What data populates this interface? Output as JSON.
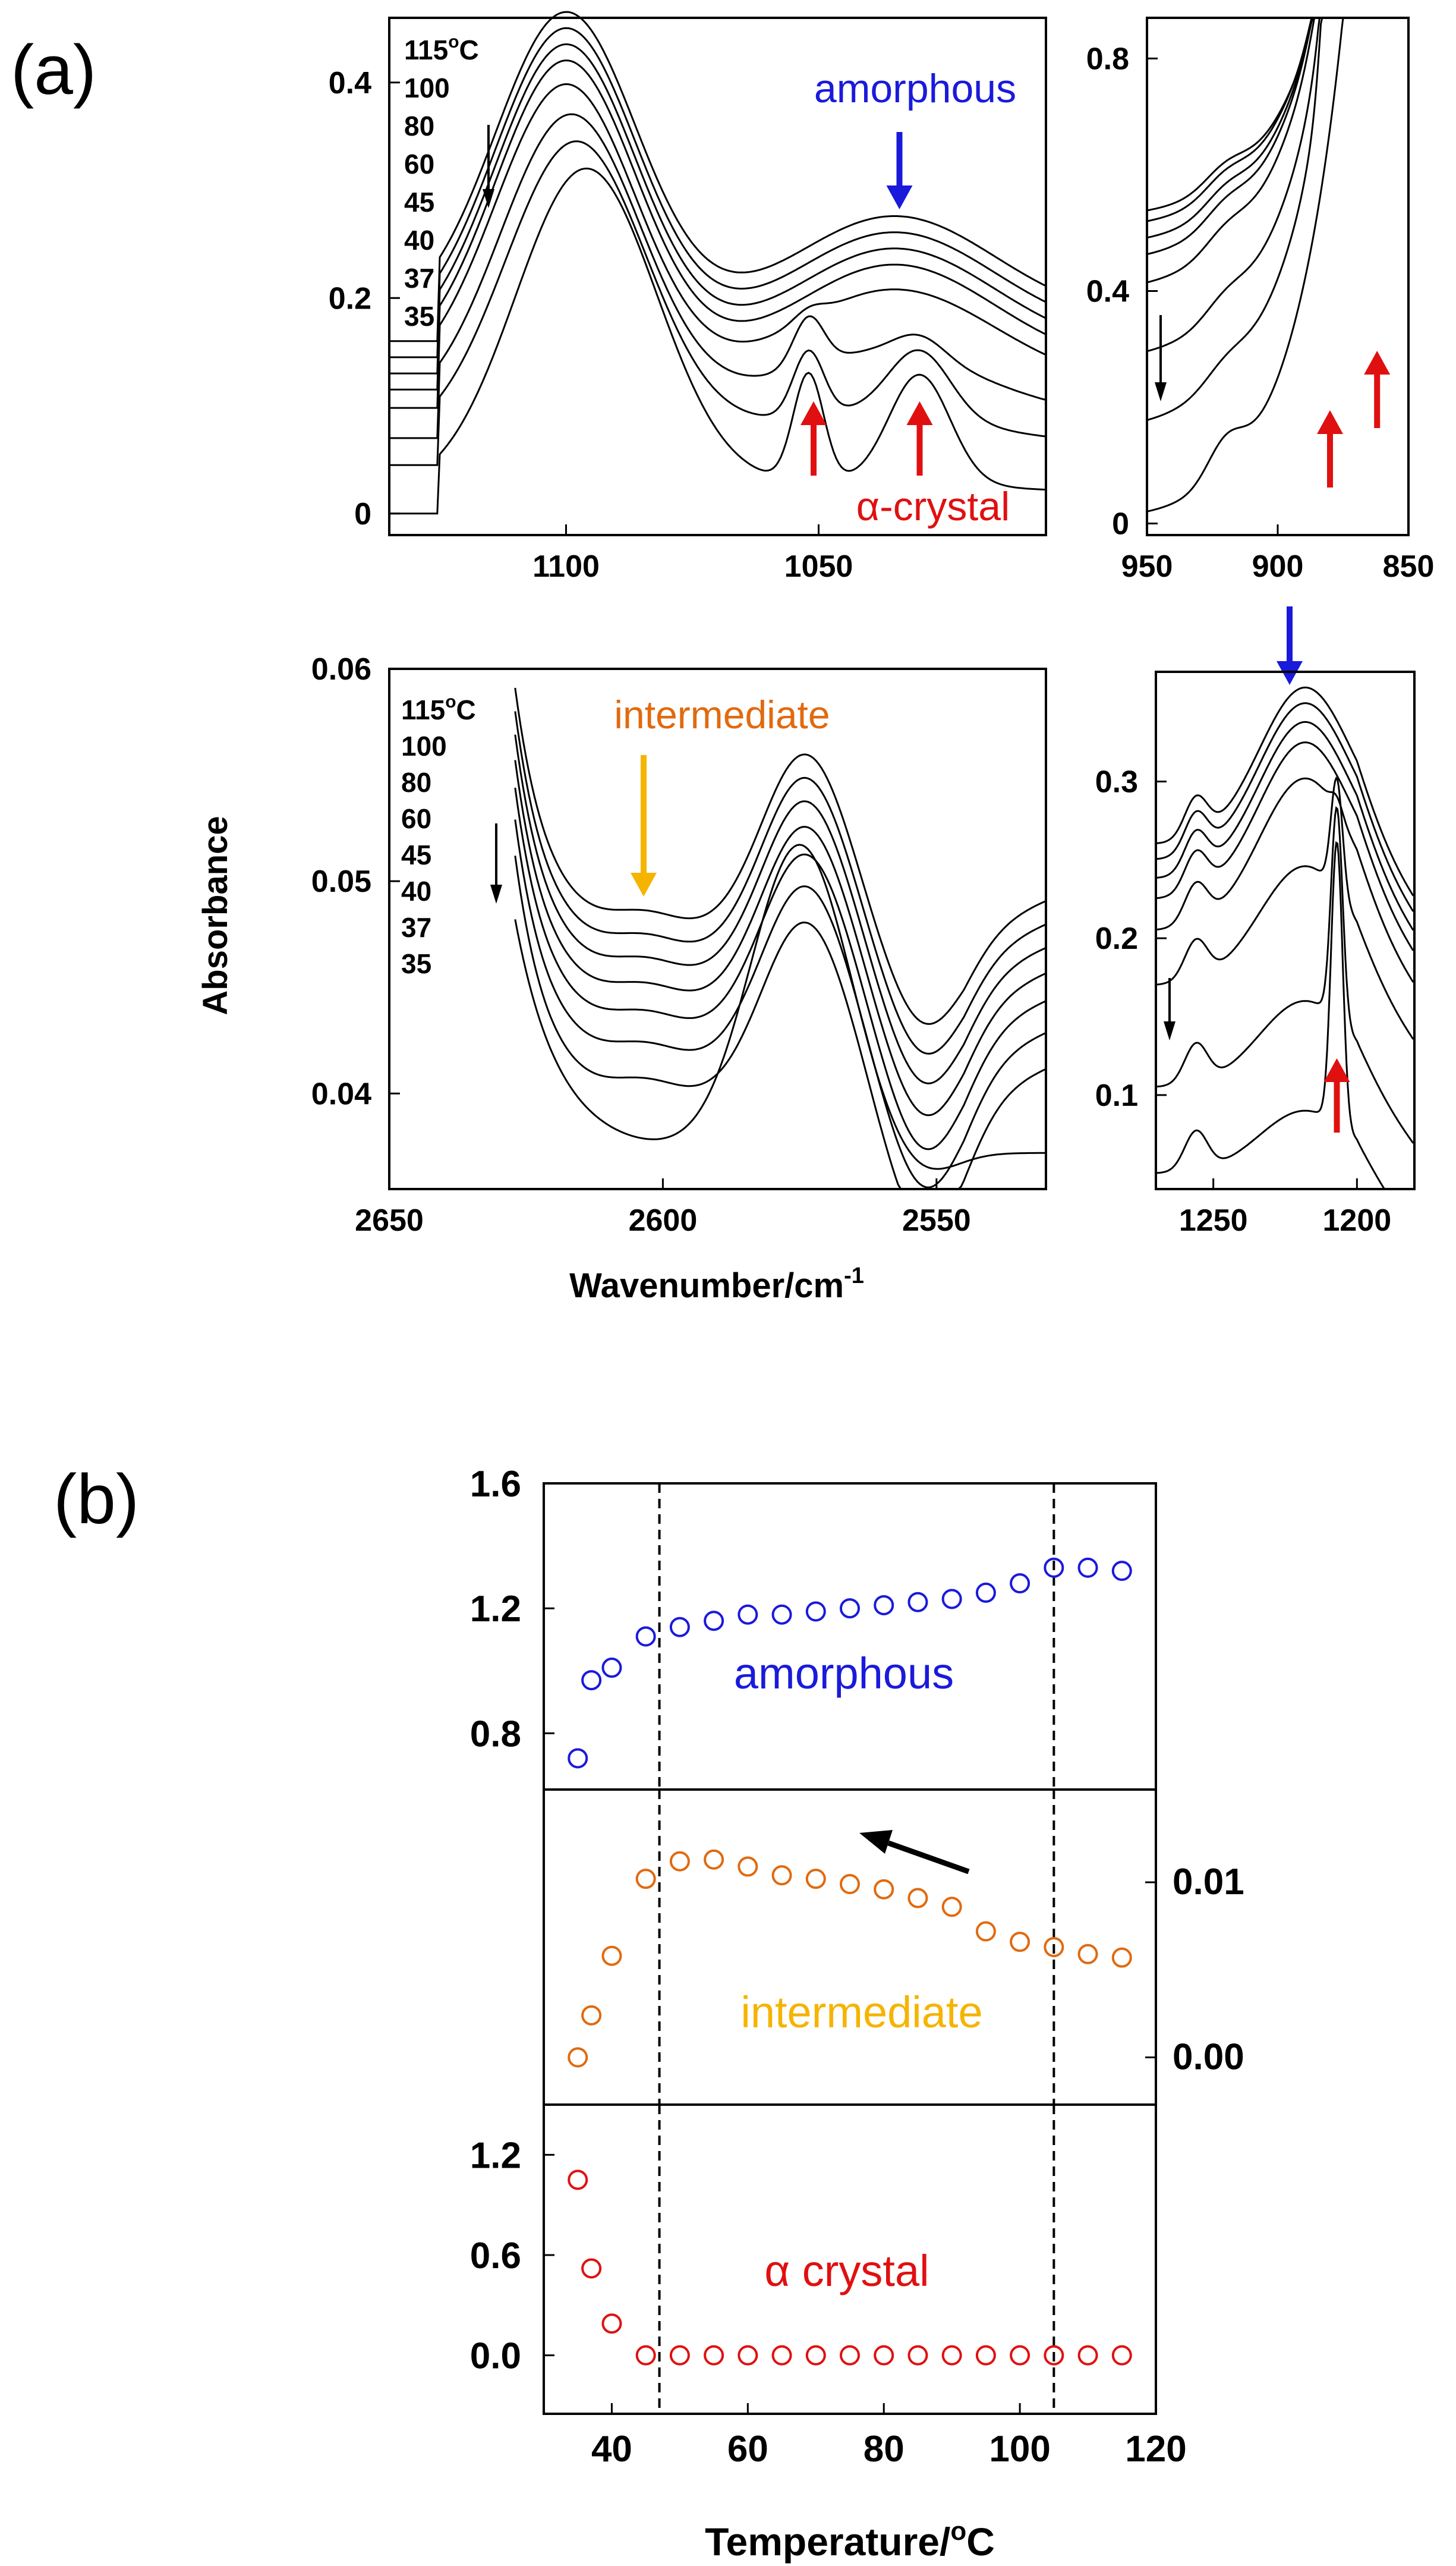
{
  "figure": {
    "panel_a_label": "(a)",
    "panel_b_label": "(b)",
    "y_axis_label": "Absorbance",
    "x_axis_label_a": "Wavenumber/cm",
    "x_axis_label_a_sup": "-1",
    "x_axis_label_b": "Temperature/",
    "x_axis_label_b_sup": "o",
    "x_axis_label_b_end": "C",
    "colors": {
      "amorphous": "#1a1adb",
      "intermediate": "#e06a10",
      "intermediate_arrow": "#f5b400",
      "intermediate_label_b": "#f5b400",
      "crystal": "#e01010",
      "line": "#000000"
    }
  },
  "chart_data": [
    {
      "id": "a1",
      "type": "line",
      "title": "",
      "xlim": [
        1135,
        1005
      ],
      "ylim": [
        -0.02,
        0.46
      ],
      "x_ticks": [
        1100,
        1050
      ],
      "x_tick_labels": [
        "1100",
        "1050"
      ],
      "y_ticks": [
        0,
        0.2,
        0.4
      ],
      "y_tick_labels": [
        "0",
        "0.2",
        "0.4"
      ],
      "legend": {
        "labels": [
          "115",
          "100",
          "80",
          "60",
          "45",
          "40",
          "37",
          "35"
        ],
        "first_suffix_sup": "o",
        "first_suffix": "C",
        "placement": "top-left"
      },
      "annotations": [
        {
          "text": "amorphous",
          "color": "amorphous",
          "arrow": "down",
          "at_x": 1034
        },
        {
          "text": "α-crystal",
          "color": "crystal",
          "arrows_up_at_x": [
            1051,
            1030
          ]
        }
      ],
      "series": [
        {
          "name": "115",
          "offset": 0.16,
          "peaks": [
            [
              1100,
              0.285,
              14
            ],
            [
              1035,
              0.096,
              20
            ]
          ],
          "sharp": []
        },
        {
          "name": "100",
          "offset": 0.145,
          "peaks": [
            [
              1100,
              0.285,
              14
            ],
            [
              1035,
              0.096,
              20
            ]
          ],
          "sharp": []
        },
        {
          "name": "80",
          "offset": 0.13,
          "peaks": [
            [
              1100,
              0.285,
              14
            ],
            [
              1035,
              0.096,
              20
            ]
          ],
          "sharp": []
        },
        {
          "name": "60",
          "offset": 0.115,
          "peaks": [
            [
              1100,
              0.285,
              14
            ],
            [
              1035,
              0.096,
              20
            ]
          ],
          "sharp": []
        },
        {
          "name": "45",
          "offset": 0.098,
          "peaks": [
            [
              1100,
              0.28,
              14
            ],
            [
              1035,
              0.09,
              20
            ]
          ],
          "sharp": [
            [
              1052,
              0.01,
              3
            ]
          ]
        },
        {
          "name": "40",
          "offset": 0.07,
          "peaks": [
            [
              1099,
              0.28,
              14
            ],
            [
              1038,
              0.06,
              20
            ]
          ],
          "sharp": [
            [
              1052,
              0.045,
              3
            ],
            [
              1030,
              0.02,
              5
            ]
          ]
        },
        {
          "name": "37",
          "offset": 0.045,
          "peaks": [
            [
              1098,
              0.28,
              14
            ],
            [
              1040,
              0.03,
              20
            ]
          ],
          "sharp": [
            [
              1052,
              0.06,
              3
            ],
            [
              1030,
              0.06,
              6
            ]
          ]
        },
        {
          "name": "35",
          "offset": 0.0,
          "peaks": [
            [
              1096,
              0.3,
              14
            ],
            [
              1040,
              0.01,
              20
            ]
          ],
          "sharp": [
            [
              1052,
              0.1,
              3
            ],
            [
              1030,
              0.1,
              6
            ]
          ]
        }
      ]
    },
    {
      "id": "a2",
      "type": "line",
      "title": "",
      "xlim": [
        950,
        850
      ],
      "ylim": [
        -0.02,
        0.87
      ],
      "x_ticks": [
        950,
        900,
        850
      ],
      "x_tick_labels": [
        "950",
        "900",
        "850"
      ],
      "y_ticks": [
        0,
        0.4,
        0.8
      ],
      "y_tick_labels": [
        "0",
        "0.4",
        "0.8"
      ],
      "annotations": [
        {
          "text": "",
          "color": "crystal",
          "arrows_up_at_x": [
            880,
            862
          ]
        }
      ],
      "series": [
        {
          "name": "115",
          "offset": 0.52
        },
        {
          "name": "100",
          "offset": 0.5
        },
        {
          "name": "80",
          "offset": 0.47
        },
        {
          "name": "60",
          "offset": 0.44
        },
        {
          "name": "45",
          "offset": 0.39
        },
        {
          "name": "40",
          "offset": 0.27
        },
        {
          "name": "37",
          "offset": 0.15
        },
        {
          "name": "35",
          "offset": 0.0
        }
      ]
    },
    {
      "id": "a3",
      "type": "line",
      "title": "",
      "xlim": [
        2650,
        2530
      ],
      "ylim": [
        0.0355,
        0.06
      ],
      "x_ticks": [
        2650,
        2600,
        2550
      ],
      "x_tick_labels": [
        "2650",
        "2600",
        "2550"
      ],
      "y_ticks": [
        0.04,
        0.05,
        0.06
      ],
      "y_tick_labels": [
        "0.04",
        "0.05",
        "0.06"
      ],
      "legend": {
        "labels": [
          "115",
          "100",
          "80",
          "60",
          "45",
          "40",
          "37",
          "35"
        ],
        "first_suffix_sup": "o",
        "first_suffix": "C",
        "placement": "top-left"
      },
      "annotations": [
        {
          "text": "intermediate",
          "color": "intermediate",
          "arrow_color": "intermediate_arrow",
          "arrow": "down",
          "at_x": 2604
        }
      ],
      "series": [
        {
          "name": "115",
          "offset": 0.0476
        },
        {
          "name": "100",
          "offset": 0.0465
        },
        {
          "name": "80",
          "offset": 0.0454
        },
        {
          "name": "60",
          "offset": 0.0442
        },
        {
          "name": "45",
          "offset": 0.0429
        },
        {
          "name": "40",
          "offset": 0.0414
        },
        {
          "name": "37",
          "offset": 0.0397
        },
        {
          "name": "35",
          "offset": 0.0372
        }
      ]
    },
    {
      "id": "a4",
      "type": "line",
      "title": "",
      "xlim": [
        1270,
        1180
      ],
      "ylim": [
        0.04,
        0.37
      ],
      "x_ticks": [
        1250,
        1200
      ],
      "x_tick_labels": [
        "1250",
        "1200"
      ],
      "y_ticks": [
        0.1,
        0.2,
        0.3
      ],
      "y_tick_labels": [
        "0.1",
        "0.2",
        "0.3"
      ],
      "annotations": [
        {
          "text": "",
          "color": "amorphous",
          "arrow": "down",
          "at_x": 1220
        },
        {
          "text": "",
          "color": "crystal",
          "arrows_up_at_x": [
            1207
          ]
        }
      ],
      "series": [
        {
          "name": "115",
          "offset": 0.26
        },
        {
          "name": "100",
          "offset": 0.25
        },
        {
          "name": "80",
          "offset": 0.238
        },
        {
          "name": "60",
          "offset": 0.225
        },
        {
          "name": "45",
          "offset": 0.205
        },
        {
          "name": "40",
          "offset": 0.17
        },
        {
          "name": "37",
          "offset": 0.105
        },
        {
          "name": "35",
          "offset": 0.05
        }
      ]
    },
    {
      "id": "b1",
      "type": "scatter",
      "series_name": "amorphous",
      "color": "amorphous",
      "xlim": [
        30,
        120
      ],
      "ylim": [
        0.62,
        1.6
      ],
      "y_ticks": [
        0.8,
        1.2,
        1.6
      ],
      "y_tick_labels": [
        "0.8",
        "1.2",
        "1.6"
      ],
      "label": "amorphous",
      "vlines": [
        47,
        105
      ],
      "x": [
        35,
        37,
        40,
        45,
        50,
        55,
        60,
        65,
        70,
        75,
        80,
        85,
        90,
        95,
        100,
        105,
        110,
        115
      ],
      "y": [
        0.72,
        0.97,
        1.01,
        1.11,
        1.14,
        1.16,
        1.18,
        1.18,
        1.19,
        1.2,
        1.21,
        1.22,
        1.23,
        1.25,
        1.28,
        1.33,
        1.33,
        1.32
      ]
    },
    {
      "id": "b2",
      "type": "scatter",
      "series_name": "intermediate",
      "color": "intermediate",
      "xlim": [
        30,
        120
      ],
      "ylim": [
        -0.0027,
        0.0153
      ],
      "y_ticks": [
        0.0,
        0.01
      ],
      "y_tick_labels": [
        "0.00",
        "0.01"
      ],
      "y_axis_side": "right",
      "label": "intermediate",
      "label_color": "intermediate_label_b",
      "arrow": "black, pointing up-left toward lower temperature",
      "vlines": [
        47,
        105
      ],
      "x": [
        35,
        37,
        40,
        45,
        50,
        55,
        60,
        65,
        70,
        75,
        80,
        85,
        90,
        95,
        100,
        105,
        110,
        115
      ],
      "y": [
        0.0,
        0.0024,
        0.0058,
        0.0102,
        0.0112,
        0.0113,
        0.0109,
        0.0104,
        0.0102,
        0.0099,
        0.0096,
        0.0091,
        0.0086,
        0.0072,
        0.0066,
        0.0063,
        0.0059,
        0.0057
      ]
    },
    {
      "id": "b3",
      "type": "scatter",
      "series_name": "α crystal",
      "color": "crystal",
      "xlim": [
        30,
        120
      ],
      "ylim": [
        -0.35,
        1.5
      ],
      "x_ticks": [
        40,
        60,
        80,
        100,
        120
      ],
      "x_tick_labels": [
        "40",
        "60",
        "80",
        "100",
        "120"
      ],
      "y_ticks": [
        0.0,
        0.6,
        1.2
      ],
      "y_tick_labels": [
        "0.0",
        "0.6",
        "1.2"
      ],
      "label": "α crystal",
      "vlines": [
        47,
        105
      ],
      "x": [
        35,
        37,
        40,
        45,
        50,
        55,
        60,
        65,
        70,
        75,
        80,
        85,
        90,
        95,
        100,
        105,
        110,
        115
      ],
      "y": [
        1.05,
        0.52,
        0.19,
        0.0,
        0.0,
        0.0,
        0.0,
        0.0,
        0.0,
        0.0,
        0.0,
        0.0,
        0.0,
        0.0,
        0.0,
        0.0,
        0.0,
        0.0
      ]
    }
  ]
}
